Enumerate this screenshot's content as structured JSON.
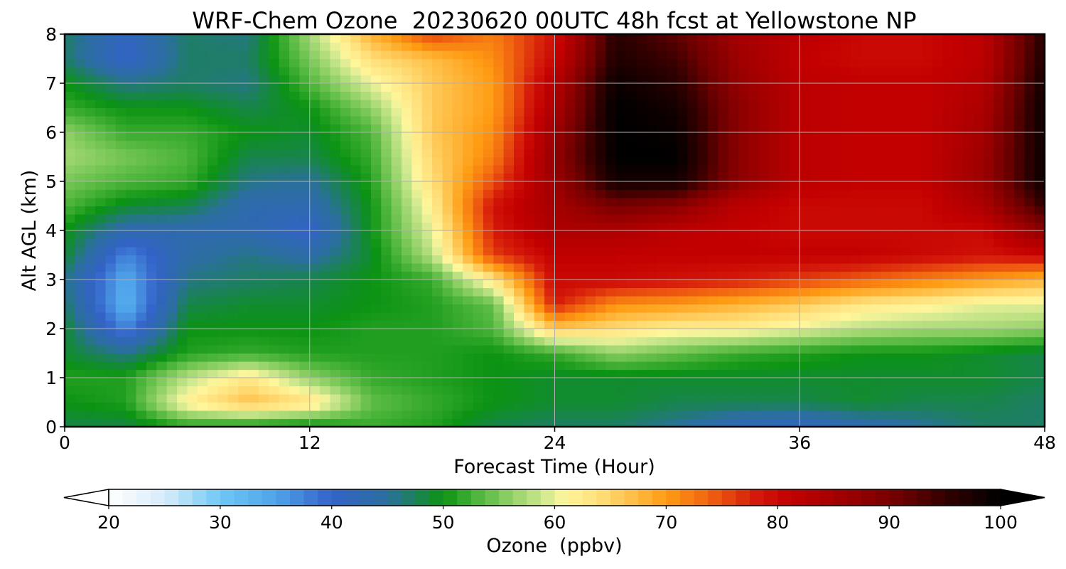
{
  "chart_data": {
    "type": "heatmap",
    "title": "WRF-Chem Ozone  20230620 00UTC 48h fcst at Yellowstone NP",
    "xlabel": "Forecast Time (Hour)",
    "ylabel": "Alt AGL (km)",
    "xlim": [
      0,
      48
    ],
    "ylim": [
      0,
      8
    ],
    "x_ticks": [
      0,
      12,
      24,
      36,
      48
    ],
    "y_ticks": [
      0,
      1,
      2,
      3,
      4,
      5,
      6,
      7,
      8
    ],
    "grid": true,
    "x": [
      0,
      3,
      6,
      9,
      12,
      15,
      18,
      21,
      24,
      27,
      30,
      33,
      36,
      39,
      42,
      45,
      48
    ],
    "y": [
      0,
      0.5,
      1,
      1.5,
      2,
      2.5,
      3,
      3.5,
      4,
      4.5,
      5,
      5.5,
      6,
      6.5,
      7,
      7.5,
      8
    ],
    "z": [
      [
        48,
        48,
        51,
        50,
        49,
        52,
        51,
        48,
        47,
        47,
        45,
        42,
        41,
        43,
        45,
        47,
        47
      ],
      [
        50,
        51,
        62,
        67,
        64,
        54,
        52,
        50,
        49,
        49,
        48,
        48,
        48,
        49,
        48,
        48,
        47
      ],
      [
        51,
        51,
        58,
        63,
        56,
        52,
        51,
        50,
        49,
        49,
        49,
        49,
        49,
        49,
        49,
        49,
        48
      ],
      [
        49,
        46,
        51,
        52,
        51,
        51,
        51,
        50,
        52,
        56,
        54,
        52,
        51,
        50,
        50,
        49,
        48
      ],
      [
        49,
        37,
        50,
        50,
        50,
        51,
        51,
        53,
        66,
        64,
        62,
        62,
        60,
        58,
        57,
        57,
        56
      ],
      [
        47,
        33,
        48,
        49,
        49,
        50,
        51,
        54,
        78,
        71,
        70,
        68,
        66,
        63,
        62,
        60,
        60
      ],
      [
        46,
        34,
        46,
        47,
        48,
        50,
        52,
        63,
        80,
        80,
        79,
        78,
        76,
        74,
        72,
        70,
        68
      ],
      [
        49,
        37,
        44,
        46,
        44,
        49,
        58,
        76,
        81,
        81,
        81,
        81,
        81,
        81,
        80,
        79,
        80
      ],
      [
        50,
        43,
        43,
        43,
        40,
        50,
        60,
        78,
        84,
        84,
        82,
        81,
        80,
        80,
        80,
        80,
        88
      ],
      [
        53,
        49,
        48,
        43,
        43,
        50,
        62,
        79,
        85,
        90,
        88,
        82,
        80,
        80,
        80,
        84,
        95
      ],
      [
        55,
        53,
        52,
        46,
        45,
        51,
        64,
        75,
        86,
        98,
        98,
        88,
        82,
        81,
        81,
        86,
        99
      ],
      [
        57,
        55,
        53,
        48,
        48,
        52,
        65,
        72,
        87,
        100,
        100,
        88,
        82,
        81,
        81,
        86,
        99
      ],
      [
        56,
        52,
        52,
        50,
        49,
        53,
        66,
        71,
        86,
        100,
        99,
        88,
        82,
        81,
        81,
        85,
        99
      ],
      [
        52,
        50,
        50,
        48,
        50,
        56,
        66,
        70,
        84,
        100,
        98,
        88,
        82,
        81,
        81,
        84,
        99
      ],
      [
        50,
        46,
        47,
        46,
        53,
        60,
        66,
        70,
        83,
        99,
        96,
        87,
        82,
        81,
        81,
        83,
        98
      ],
      [
        47,
        40,
        47,
        47,
        55,
        64,
        67,
        71,
        80,
        97,
        94,
        86,
        81,
        80,
        80,
        82,
        97
      ],
      [
        47,
        41,
        47,
        46,
        57,
        68,
        76,
        72,
        79,
        96,
        92,
        85,
        82,
        80,
        80,
        82,
        96
      ]
    ],
    "colorbar": {
      "label": "Ozone  (ppbv)",
      "min": 20,
      "max": 100,
      "ticks": [
        20,
        30,
        40,
        50,
        60,
        70,
        80,
        90,
        100
      ],
      "extend": "both",
      "colors": [
        [
          20,
          "#ffffff"
        ],
        [
          25,
          "#d7ecfa"
        ],
        [
          30,
          "#6ec8f5"
        ],
        [
          35,
          "#4fa3ea"
        ],
        [
          40,
          "#3362c8"
        ],
        [
          45,
          "#2b6f9e"
        ],
        [
          50,
          "#0b9313"
        ],
        [
          53,
          "#4db53b"
        ],
        [
          56,
          "#8fd066"
        ],
        [
          59,
          "#cfe88f"
        ],
        [
          61,
          "#fff69c"
        ],
        [
          64,
          "#ffdf7a"
        ],
        [
          67,
          "#ffbe46"
        ],
        [
          70,
          "#ff9c13"
        ],
        [
          74,
          "#f06010"
        ],
        [
          78,
          "#d51a0a"
        ],
        [
          81,
          "#c30000"
        ],
        [
          86,
          "#9e0000"
        ],
        [
          91,
          "#6e0000"
        ],
        [
          95,
          "#330000"
        ],
        [
          100,
          "#000000"
        ]
      ]
    }
  }
}
